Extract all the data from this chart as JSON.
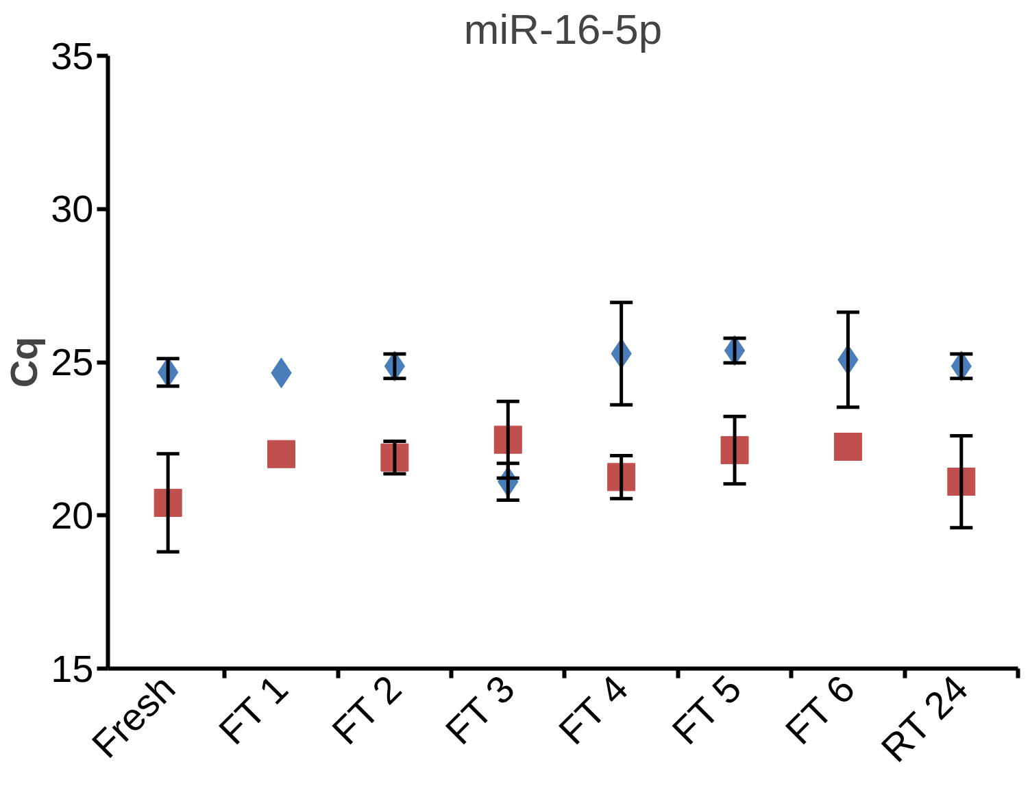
{
  "chart_data": {
    "type": "scatter",
    "title": "miR-16-5p",
    "ylabel": "Cq",
    "categories": [
      "Fresh",
      "FT 1",
      "FT 2",
      "FT 3",
      "FT 4",
      "FT 5",
      "FT 6",
      "RT 24"
    ],
    "ylim": [
      15,
      35
    ],
    "yticks": [
      15,
      20,
      25,
      30,
      35
    ],
    "grid": false,
    "series": [
      {
        "color": "#4a7ebb",
        "marker": "diamond",
        "values": [
          24.67,
          24.65,
          24.87,
          21.1,
          25.28,
          25.38,
          25.08,
          24.87
        ],
        "errors": [
          0.45,
          null,
          0.4,
          0.6,
          1.67,
          0.4,
          1.55,
          0.4
        ]
      },
      {
        "color": "#c0504d",
        "marker": "square",
        "values": [
          20.41,
          22.0,
          21.89,
          22.47,
          21.25,
          22.13,
          22.24,
          21.1
        ],
        "errors": [
          1.6,
          null,
          0.53,
          1.25,
          0.7,
          1.1,
          null,
          1.5
        ]
      }
    ]
  }
}
